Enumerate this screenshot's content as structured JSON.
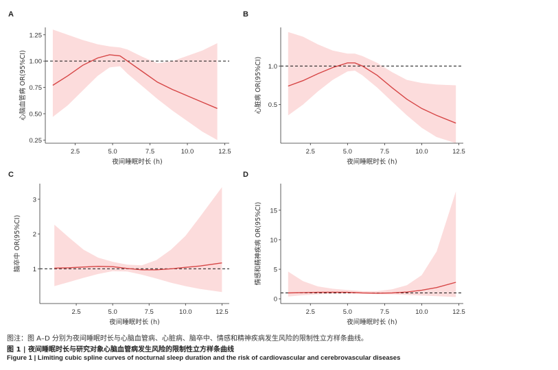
{
  "colors": {
    "line": "#d64545",
    "band": "#fcdcdc",
    "reference": "#111111",
    "text": "#333333"
  },
  "chart_data": [
    {
      "panel": "A",
      "type": "line",
      "xlabel": "夜间睡眠时长 (h)",
      "ylabel": "心脑血管病 OR(95%CI)",
      "xlim": [
        0.5,
        12.8
      ],
      "ylim": [
        0.22,
        1.32
      ],
      "xticks": [
        2.5,
        5.0,
        7.5,
        10.0,
        12.5
      ],
      "xtick_labels": [
        "2.5",
        "5.0",
        "7.5",
        "10.0",
        "12.5"
      ],
      "yticks": [
        0.25,
        0.5,
        0.75,
        1.0,
        1.25
      ],
      "ytick_labels": [
        "0.25",
        "0.50",
        "0.75",
        "1.00",
        "1.25"
      ],
      "reference": 1.0,
      "grid": false,
      "x": [
        1,
        2,
        3,
        4,
        4.8,
        5.5,
        6,
        7,
        8,
        9,
        10,
        11,
        12
      ],
      "or": [
        0.77,
        0.86,
        0.96,
        1.03,
        1.06,
        1.05,
        1.0,
        0.9,
        0.8,
        0.73,
        0.67,
        0.61,
        0.55
      ],
      "lower": [
        0.47,
        0.58,
        0.72,
        0.86,
        0.94,
        0.95,
        0.88,
        0.76,
        0.64,
        0.53,
        0.43,
        0.33,
        0.25
      ],
      "upper": [
        1.3,
        1.25,
        1.2,
        1.16,
        1.14,
        1.13,
        1.11,
        1.04,
        0.98,
        1.0,
        1.05,
        1.1,
        1.17
      ]
    },
    {
      "panel": "B",
      "type": "line",
      "xlabel": "夜间睡眠时长 (h)",
      "ylabel": "心脏病 OR(95%CI)",
      "xlim": [
        0.5,
        12.8
      ],
      "ylim": [
        0.0,
        1.5
      ],
      "xticks": [
        2.5,
        5.0,
        7.5,
        10.0,
        12.5
      ],
      "xtick_labels": [
        "2.5",
        "5.0",
        "7.5",
        "10.0",
        "12.5"
      ],
      "yticks": [
        0.5,
        1.0
      ],
      "ytick_labels": [
        "0.5",
        "1.0"
      ],
      "reference": 1.0,
      "grid": false,
      "x": [
        1,
        2,
        3,
        4,
        5,
        5.5,
        6,
        7,
        8,
        9,
        10,
        11,
        12.3
      ],
      "or": [
        0.74,
        0.81,
        0.9,
        0.98,
        1.04,
        1.04,
        1.0,
        0.88,
        0.72,
        0.57,
        0.45,
        0.36,
        0.26
      ],
      "lower": [
        0.36,
        0.5,
        0.67,
        0.82,
        0.93,
        0.94,
        0.88,
        0.72,
        0.54,
        0.36,
        0.2,
        0.08,
        0.0
      ],
      "upper": [
        1.44,
        1.38,
        1.28,
        1.2,
        1.16,
        1.16,
        1.13,
        1.04,
        0.92,
        0.82,
        0.78,
        0.76,
        0.75
      ]
    },
    {
      "panel": "C",
      "type": "line",
      "xlabel": "夜间睡眠时长 (h)",
      "ylabel": "脑卒中 OR(95%CI)",
      "xlim": [
        0.0,
        13.0
      ],
      "ylim": [
        0.0,
        3.45
      ],
      "xticks": [
        2.5,
        5.0,
        7.5,
        10.0,
        12.5
      ],
      "xtick_labels": [
        "2.5",
        "5.0",
        "7.5",
        "10.0",
        "12.5"
      ],
      "yticks": [
        1,
        2,
        3
      ],
      "ytick_labels": [
        "1",
        "2",
        "3"
      ],
      "reference": 1.0,
      "grid": false,
      "x": [
        1,
        2,
        3,
        4,
        5,
        6,
        7,
        8,
        9,
        10,
        11,
        12.5
      ],
      "or": [
        1.02,
        1.03,
        1.05,
        1.07,
        1.06,
        1.01,
        0.97,
        0.97,
        1.0,
        1.04,
        1.08,
        1.17
      ],
      "lower": [
        0.5,
        0.62,
        0.74,
        0.85,
        0.93,
        0.92,
        0.83,
        0.72,
        0.6,
        0.5,
        0.42,
        0.33
      ],
      "upper": [
        2.27,
        1.9,
        1.55,
        1.32,
        1.2,
        1.12,
        1.1,
        1.25,
        1.55,
        1.95,
        2.5,
        3.35
      ]
    },
    {
      "panel": "D",
      "type": "line",
      "xlabel": "夜间睡眠时长 (h)",
      "ylabel": "情感和精神疾病 OR(95%CI)",
      "xlim": [
        0.5,
        12.8
      ],
      "ylim": [
        -0.8,
        19.5
      ],
      "xticks": [
        2.5,
        5.0,
        7.5,
        10.0,
        12.5
      ],
      "xtick_labels": [
        "2.5",
        "5.0",
        "7.5",
        "10.0",
        "12.5"
      ],
      "yticks": [
        0,
        5,
        10,
        15
      ],
      "ytick_labels": [
        "0",
        "5",
        "10",
        "15"
      ],
      "reference": 1.0,
      "grid": false,
      "x": [
        1,
        2,
        3,
        4,
        5,
        6,
        7,
        8,
        9,
        10,
        11,
        12.3
      ],
      "or": [
        1.0,
        1.05,
        1.1,
        1.12,
        1.1,
        1.0,
        0.95,
        1.0,
        1.15,
        1.45,
        1.9,
        2.8
      ],
      "lower": [
        0.4,
        0.6,
        0.75,
        0.85,
        0.9,
        0.85,
        0.8,
        0.75,
        0.65,
        0.55,
        0.45,
        0.3
      ],
      "upper": [
        4.6,
        3.0,
        2.1,
        1.7,
        1.5,
        1.3,
        1.3,
        1.6,
        2.3,
        4.0,
        8.0,
        18.2
      ]
    }
  ],
  "caption": {
    "note": "图注：图 A–D 分别为夜间睡眠时长与心脑血管病、心脏病、脑卒中、情感和精神疾病发生风险的限制性立方样条曲线。",
    "title_cn": "图 1  |  夜间睡眠时长与研究对象心脑血管病发生风险的限制性立方样条曲线",
    "title_en": "Figure 1  |  Limiting cubic spline curves of nocturnal sleep duration and the risk of cardiovascular and cerebrovascular diseases"
  }
}
